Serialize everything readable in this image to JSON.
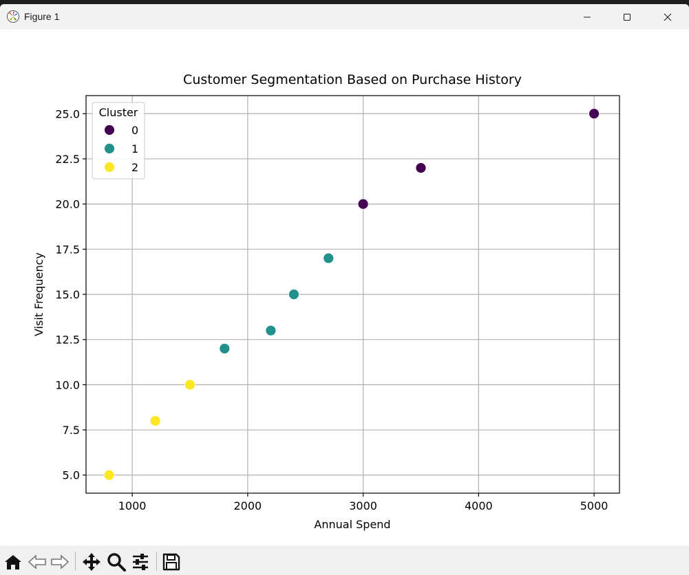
{
  "window": {
    "title": "Figure 1"
  },
  "toolbar": {
    "tools": [
      "home-icon",
      "back-icon",
      "forward-icon",
      "pan-icon",
      "zoom-icon",
      "configure-subplots-icon",
      "save-icon"
    ]
  },
  "chart_data": {
    "type": "scatter",
    "title": "Customer Segmentation Based on Purchase History",
    "xlabel": "Annual Spend",
    "ylabel": "Visit Frequency",
    "xlim": [
      600,
      5220
    ],
    "ylim": [
      4.0,
      26.0
    ],
    "xticks": [
      1000,
      2000,
      3000,
      4000,
      5000
    ],
    "xtick_labels": [
      "1000",
      "2000",
      "3000",
      "4000",
      "5000"
    ],
    "yticks": [
      5.0,
      7.5,
      10.0,
      12.5,
      15.0,
      17.5,
      20.0,
      22.5,
      25.0
    ],
    "ytick_labels": [
      "5.0",
      "7.5",
      "10.0",
      "12.5",
      "15.0",
      "17.5",
      "20.0",
      "22.5",
      "25.0"
    ],
    "grid": true,
    "legend": {
      "title": "Cluster",
      "placement": "upper-left",
      "entries": [
        {
          "label": "0",
          "color": "#440154"
        },
        {
          "label": "1",
          "color": "#21918c"
        },
        {
          "label": "2",
          "color": "#fde725"
        }
      ]
    },
    "series": [
      {
        "name": "0",
        "color": "#440154",
        "x": [
          3000,
          3500,
          5000
        ],
        "y": [
          20,
          22,
          25
        ]
      },
      {
        "name": "1",
        "color": "#21918c",
        "x": [
          1800,
          2200,
          2400,
          2700
        ],
        "y": [
          12,
          13,
          15,
          17
        ]
      },
      {
        "name": "2",
        "color": "#fde725",
        "x": [
          800,
          1200,
          1500
        ],
        "y": [
          5,
          8,
          10
        ]
      }
    ]
  }
}
